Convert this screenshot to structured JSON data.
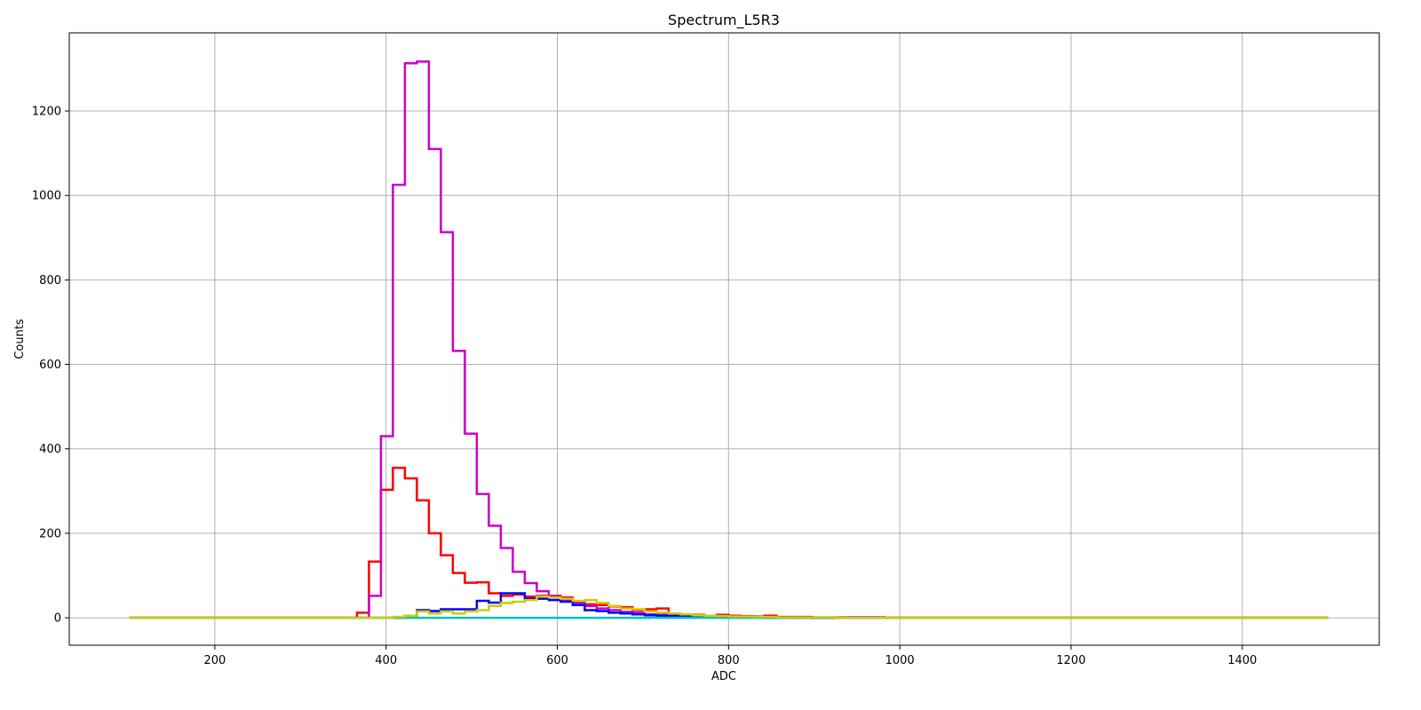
{
  "chart_data": {
    "type": "line",
    "step": "post",
    "title": "Spectrum_L5R3",
    "xlabel": "ADC",
    "ylabel": "Counts",
    "xlim": [
      30,
      1560
    ],
    "ylim": [
      -65,
      1385
    ],
    "xticks": [
      200,
      400,
      600,
      800,
      1000,
      1200,
      1400
    ],
    "yticks": [
      0,
      200,
      400,
      600,
      800,
      1000,
      1200
    ],
    "grid": true,
    "legend": "none",
    "bin_edges": [
      100,
      114,
      128,
      142,
      156,
      170,
      184,
      198,
      212,
      226,
      240,
      254,
      268,
      282,
      296,
      310,
      324,
      338,
      352,
      366,
      380,
      394,
      408,
      422,
      436,
      450,
      464,
      478,
      492,
      506,
      520,
      534,
      548,
      562,
      576,
      590,
      604,
      618,
      632,
      646,
      660,
      674,
      688,
      702,
      716,
      730,
      744,
      758,
      772,
      786,
      800,
      814,
      828,
      842,
      856,
      870,
      884,
      898,
      912,
      926,
      940,
      954,
      968,
      982,
      1000,
      1500
    ],
    "series": [
      {
        "color": "#ff0000",
        "values": [
          0,
          0,
          0,
          0,
          0,
          0,
          0,
          0,
          0,
          0,
          0,
          0,
          0,
          0,
          0,
          0,
          0,
          0,
          0,
          12,
          133,
          303,
          355,
          330,
          278,
          200,
          148,
          106,
          83,
          84,
          58,
          52,
          55,
          50,
          52,
          52,
          48,
          38,
          32,
          30,
          27,
          25,
          18,
          20,
          22,
          10,
          8,
          7,
          5,
          7,
          5,
          4,
          3,
          5,
          2,
          2,
          2,
          1,
          1,
          1,
          1,
          1,
          1,
          0,
          0
        ]
      },
      {
        "color": "#cc00cc",
        "values": [
          0,
          0,
          0,
          0,
          0,
          0,
          0,
          0,
          0,
          0,
          0,
          0,
          0,
          0,
          0,
          0,
          0,
          0,
          0,
          0,
          52,
          430,
          1025,
          1313,
          1317,
          1110,
          913,
          632,
          436,
          293,
          218,
          165,
          109,
          82,
          63,
          50,
          42,
          35,
          28,
          22,
          18,
          14,
          12,
          8,
          10,
          8,
          6,
          5,
          4,
          3,
          3,
          2,
          2,
          1,
          1,
          1,
          1,
          0,
          0,
          0,
          1,
          1,
          1,
          0,
          0
        ]
      },
      {
        "color": "#0000ff",
        "values": [
          0,
          0,
          0,
          0,
          0,
          0,
          0,
          0,
          0,
          0,
          0,
          0,
          0,
          0,
          0,
          0,
          0,
          0,
          0,
          0,
          0,
          0,
          0,
          5,
          18,
          16,
          20,
          20,
          20,
          40,
          36,
          58,
          58,
          45,
          45,
          42,
          38,
          30,
          18,
          16,
          12,
          10,
          8,
          6,
          5,
          4,
          3,
          2,
          2,
          1,
          1,
          1,
          1,
          0,
          0,
          0,
          0,
          0,
          0,
          0,
          0,
          0,
          0,
          0,
          0
        ]
      },
      {
        "color": "#00bfbf",
        "values": [
          0,
          0,
          0,
          0,
          0,
          0,
          0,
          0,
          0,
          0,
          0,
          0,
          0,
          0,
          0,
          0,
          0,
          0,
          0,
          0,
          0,
          0,
          0,
          0,
          0,
          0,
          0,
          0,
          0,
          0,
          0,
          0,
          0,
          0,
          0,
          0,
          0,
          0,
          0,
          0,
          0,
          0,
          0,
          0,
          0,
          0,
          0,
          0,
          0,
          0,
          0,
          0,
          0,
          0,
          0,
          0,
          0,
          0,
          0,
          0,
          0,
          0,
          0,
          0,
          0
        ]
      },
      {
        "color": "#cccc00",
        "values": [
          0,
          0,
          0,
          0,
          0,
          0,
          0,
          0,
          0,
          0,
          0,
          0,
          0,
          0,
          0,
          0,
          0,
          0,
          0,
          0,
          0,
          0,
          2,
          5,
          15,
          10,
          15,
          10,
          15,
          18,
          28,
          35,
          38,
          42,
          50,
          48,
          45,
          40,
          42,
          35,
          28,
          22,
          20,
          15,
          12,
          10,
          8,
          6,
          5,
          4,
          3,
          3,
          2,
          2,
          1,
          1,
          1,
          1,
          1,
          0,
          0,
          0,
          0,
          0,
          0
        ]
      }
    ]
  }
}
